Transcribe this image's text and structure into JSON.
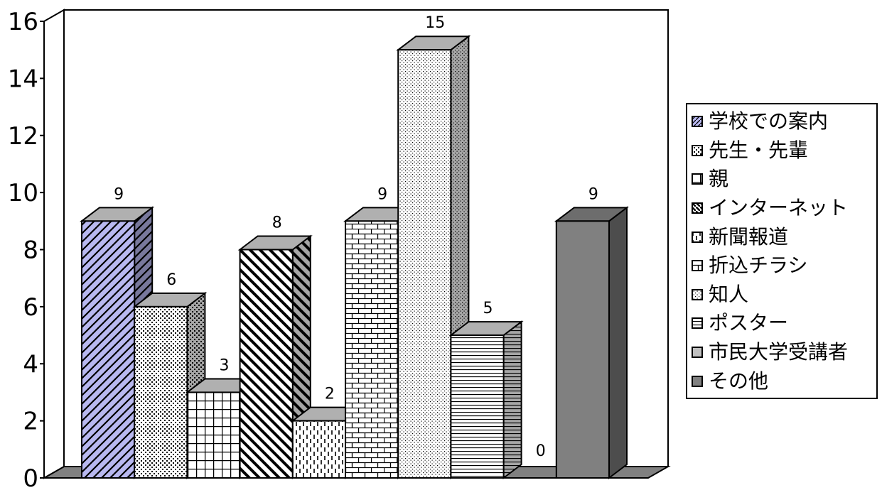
{
  "chart_data": {
    "type": "bar",
    "categories": [
      "学校での案内",
      "先生・先輩",
      "親",
      "インターネット",
      "新聞報道",
      "折込チラシ",
      "知人",
      "ポスター",
      "市民大学受講者",
      "その他"
    ],
    "values": [
      9,
      6,
      3,
      8,
      2,
      9,
      15,
      5,
      0,
      9
    ],
    "data_labels": [
      "9",
      "6",
      "3",
      "8",
      "2",
      "9",
      "15",
      "5",
      "0",
      "9"
    ],
    "y_ticks": [
      "0",
      "2",
      "4",
      "6",
      "8",
      "10",
      "12",
      "14",
      "16"
    ],
    "ylim": [
      0,
      16
    ],
    "title": "",
    "xlabel": "",
    "ylabel": "",
    "grid": false,
    "legend_position": "right",
    "style": "3d-column"
  },
  "series_styles": [
    {
      "pattern": "diag-hatch",
      "color": "#b8b8f0"
    },
    {
      "pattern": "dots-dense",
      "color": "#ffffff"
    },
    {
      "pattern": "grid",
      "color": "#ffffff"
    },
    {
      "pattern": "diag-bold",
      "color": "#ffffff"
    },
    {
      "pattern": "vertical-dash",
      "color": "#ffffff"
    },
    {
      "pattern": "brick",
      "color": "#ffffff"
    },
    {
      "pattern": "dots-fine",
      "color": "#ffffff"
    },
    {
      "pattern": "horizontal",
      "color": "#ffffff"
    },
    {
      "pattern": "solid",
      "color": "#c0c0c0"
    },
    {
      "pattern": "solid",
      "color": "#808080"
    }
  ]
}
